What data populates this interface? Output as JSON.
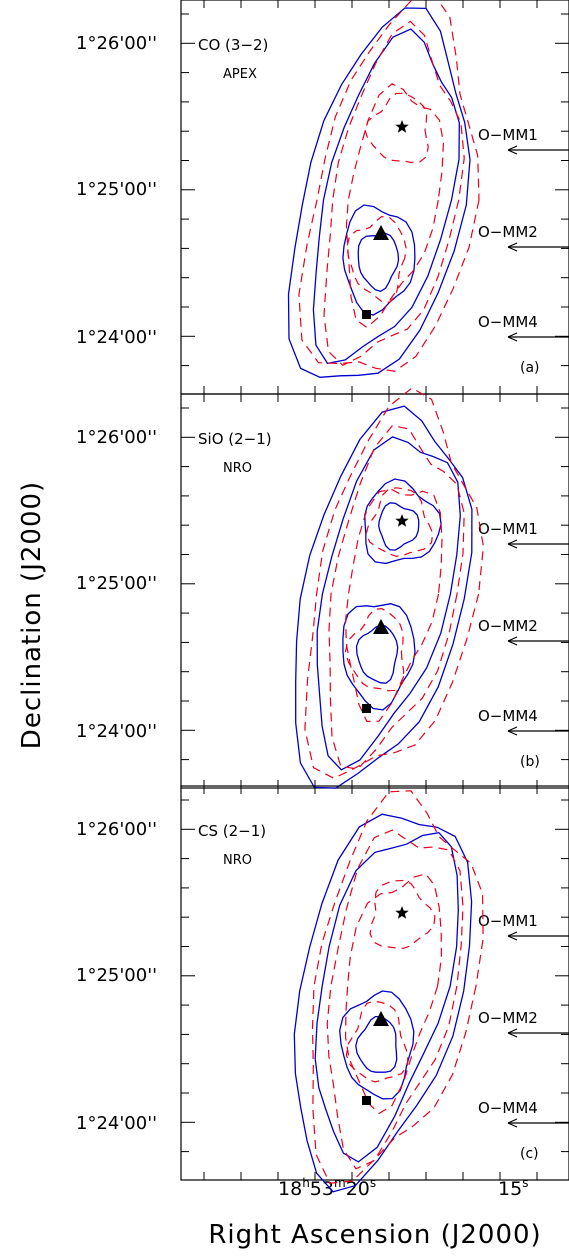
{
  "figure": {
    "xlabel": "Right Ascension (J2000)",
    "ylabel": "Declination (J2000)",
    "x_ticks": [
      {
        "label_main": "18",
        "sup1": "h",
        "mid": "53",
        "sup2": "m",
        "end": "20",
        "sup3": "s"
      },
      {
        "label_main": "15",
        "sup3": "s"
      }
    ],
    "y_ticks": [
      "1°26'00''",
      "1°25'00''",
      "1°24'00''"
    ]
  },
  "colors": {
    "solid_contours": "#0000cc",
    "dashed_contours": "#e8001c",
    "axes": "#000000"
  },
  "marker_icons": [
    "star-icon",
    "triangle-icon",
    "square-icon"
  ],
  "chart_data": [
    {
      "type": "contour",
      "panel_label": "(a)",
      "line_label": "CO (3−2)",
      "telescope": "APEX",
      "y_tick_labels": [
        "1°26'00''",
        "1°25'00''",
        "1°24'00''"
      ],
      "arrows": [
        "O−MM1",
        "O−MM2",
        "O−MM4"
      ],
      "markers": [
        "star",
        "triangle",
        "square"
      ]
    },
    {
      "type": "contour",
      "panel_label": "(b)",
      "line_label": "SiO (2−1)",
      "telescope": "NRO",
      "y_tick_labels": [
        "1°26'00''",
        "1°25'00''",
        "1°24'00''"
      ],
      "arrows": [
        "O−MM1",
        "O−MM2",
        "O−MM4"
      ],
      "markers": [
        "star",
        "triangle",
        "square"
      ]
    },
    {
      "type": "contour",
      "panel_label": "(c)",
      "line_label": "CS (2−1)",
      "telescope": "NRO",
      "y_tick_labels": [
        "1°26'00''",
        "1°25'00''",
        "1°24'00''"
      ],
      "arrows": [
        "O−MM1",
        "O−MM2",
        "O−MM4"
      ],
      "markers": [
        "star",
        "triangle",
        "square"
      ]
    }
  ]
}
